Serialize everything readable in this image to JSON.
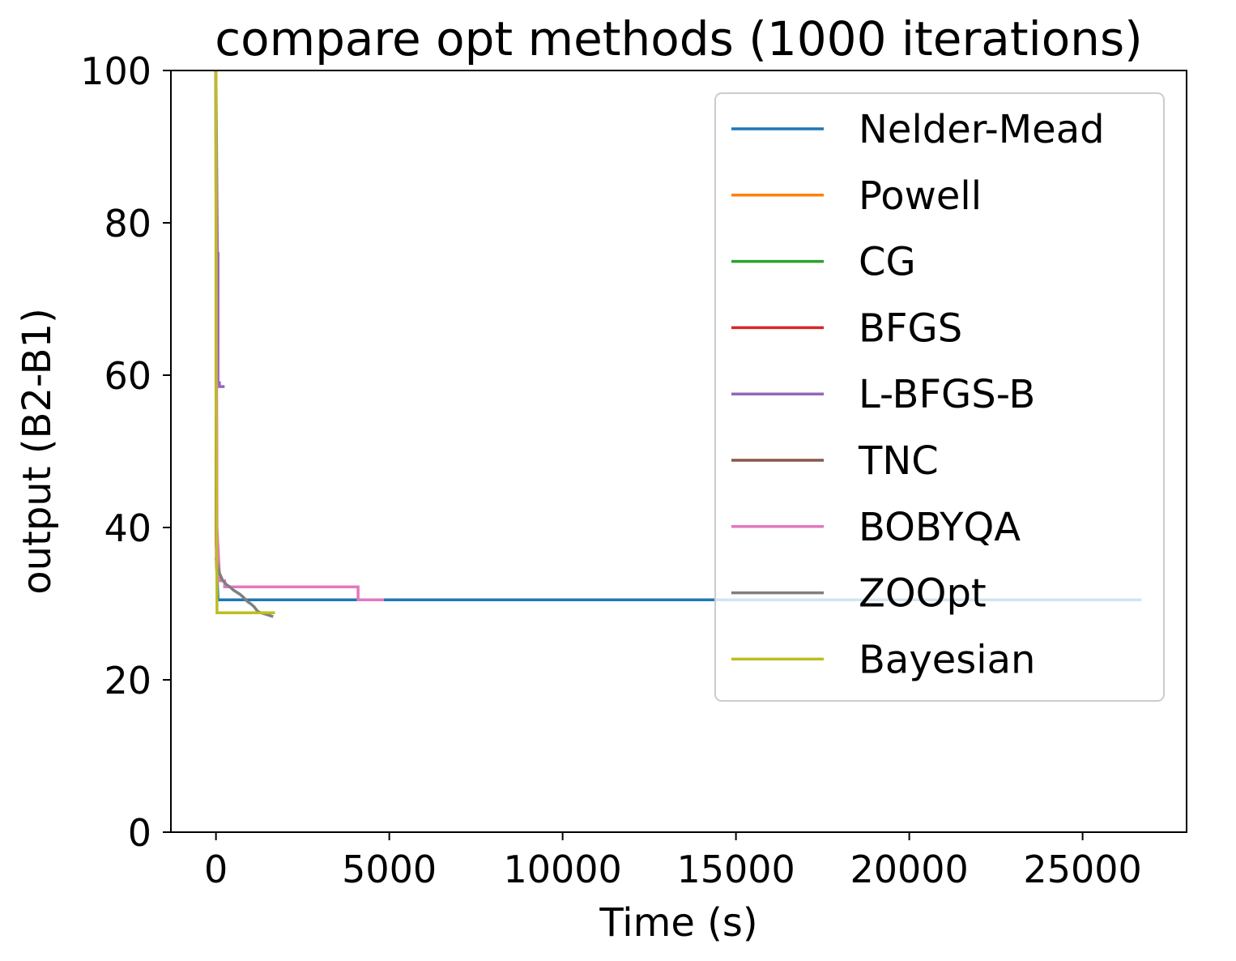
{
  "chart_data": {
    "type": "line",
    "title": "compare opt methods  (1000 iterations)",
    "xlabel": "Time (s)",
    "ylabel": "output (B2-B1)",
    "xlim": [
      -1300,
      28000
    ],
    "ylim": [
      0,
      100
    ],
    "xticks": [
      0,
      5000,
      10000,
      15000,
      20000,
      25000
    ],
    "xtick_labels": [
      "0",
      "5000",
      "10000",
      "15000",
      "20000",
      "25000"
    ],
    "yticks": [
      0,
      20,
      40,
      60,
      80,
      100
    ],
    "ytick_labels": [
      "0",
      "20",
      "40",
      "60",
      "80",
      "100"
    ],
    "grid": false,
    "legend_position": "top-right",
    "series": [
      {
        "name": "Nelder-Mead",
        "color": "#1f77b4",
        "x": [
          0,
          10,
          20,
          60,
          26700
        ],
        "y": [
          100,
          45,
          35,
          30.5,
          30.5
        ]
      },
      {
        "name": "Powell",
        "color": "#ff7f0e",
        "x": [
          0,
          10,
          30
        ],
        "y": [
          100,
          40,
          33
        ]
      },
      {
        "name": "CG",
        "color": "#2ca02c",
        "x": [
          0,
          10,
          30
        ],
        "y": [
          100,
          38,
          33
        ]
      },
      {
        "name": "BFGS",
        "color": "#d62728",
        "x": [
          0,
          10,
          30
        ],
        "y": [
          100,
          38,
          33
        ]
      },
      {
        "name": "L-BFGS-B",
        "color": "#9467bd",
        "x": [
          0,
          40,
          60,
          60,
          100,
          100,
          250
        ],
        "y": [
          100,
          76,
          76,
          59,
          59,
          58.5,
          58.5
        ]
      },
      {
        "name": "TNC",
        "color": "#8c564b",
        "x": [
          0,
          20,
          40
        ],
        "y": [
          100,
          40,
          34
        ]
      },
      {
        "name": "BOBYQA",
        "color": "#e377c2",
        "x": [
          0,
          30,
          100,
          100,
          250,
          250,
          4100,
          4100,
          4850
        ],
        "y": [
          100,
          40,
          34,
          33,
          33,
          32.2,
          32.2,
          30.5,
          30.5
        ]
      },
      {
        "name": "ZOOpt",
        "color": "#7f7f7f",
        "x": [
          0,
          50,
          100,
          150,
          200,
          250,
          300,
          400,
          500,
          600,
          700,
          800,
          900,
          1000,
          1100,
          1200,
          1300,
          1450,
          1650
        ],
        "y": [
          36,
          35,
          34,
          33.5,
          33,
          32.8,
          32.5,
          32.2,
          31.8,
          31.5,
          31.2,
          30.8,
          30.3,
          30,
          29.6,
          29,
          28.8,
          28.6,
          28.3
        ]
      },
      {
        "name": "Bayesian",
        "color": "#bcbd22",
        "x": [
          0,
          0,
          30,
          30,
          1700
        ],
        "y": [
          100,
          60,
          30,
          28.8,
          28.8
        ]
      }
    ]
  }
}
